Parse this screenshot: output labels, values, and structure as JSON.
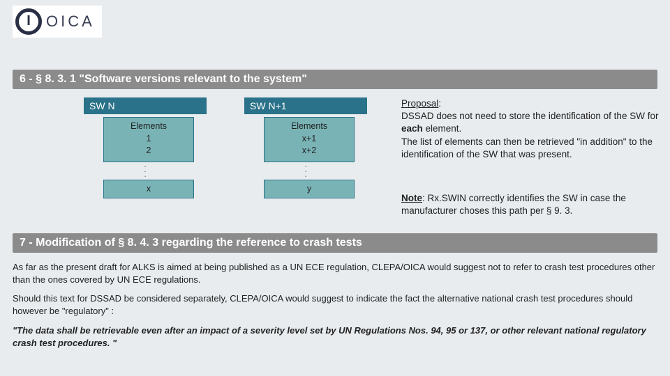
{
  "logo": {
    "brand": "OICA",
    "mark": "I"
  },
  "bar1": "6 - § 8. 3. 1 \"Software versions relevant to the system\"",
  "bar2": "7 - Modification of § 8. 4. 3 regarding the reference to crash tests",
  "col_a": {
    "head": "SW N",
    "box_title": "Elements",
    "line1": "1",
    "line2": "2",
    "last": "x"
  },
  "col_b": {
    "head": "SW N+1",
    "box_title": "Elements",
    "line1": "x+1",
    "line2": "x+2",
    "last": "y"
  },
  "proposal": {
    "label": "Proposal",
    "l1": "DSSAD does not need to store the identification of the SW for ",
    "l1_each": "each",
    "l1b": " element.",
    "l2": "The list of elements can then be retrieved \"in addition\" to the identification of the SW that was present."
  },
  "note": {
    "label": "Note",
    "text": ": Rx.SWIN correctly identifies the SW in case the manufacturer choses this path per § 9. 3."
  },
  "paras": {
    "p1": "As far as the present draft for ALKS is aimed at being published as a UN ECE regulation, CLEPA/OICA would suggest not to refer to crash test procedures other than the ones covered by UN ECE regulations.",
    "p2": "Should this text for DSSAD be considered separately, CLEPA/OICA would suggest to indicate the fact the alternative national crash test procedures should however be \"regulatory\" :",
    "p3a": "\"The data shall be retrievable even after an impact of a severity level set by UN Regulations Nos. 94, 95 or 137, or other relevant national ",
    "p3reg": "regulatory",
    "p3b": " crash test procedures. \""
  },
  "colors": {
    "page_bg": "#e8ecef",
    "bar_bg": "#8b8b8b",
    "head_bg": "#2a7289",
    "box_bg": "#79b3b5"
  }
}
